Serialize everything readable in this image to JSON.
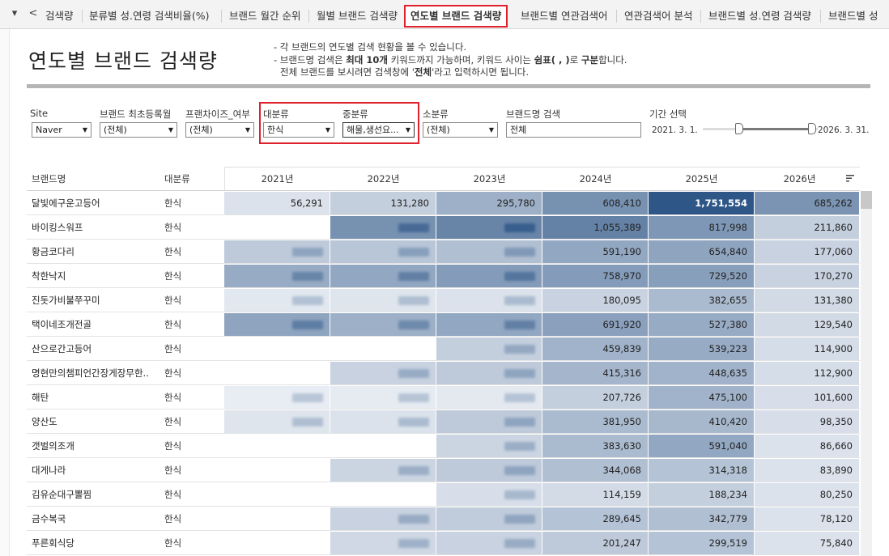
{
  "tabs": [
    {
      "label": "검색량",
      "active": false
    },
    {
      "label": "분류별 성.연령 검색비율(%)",
      "active": false
    },
    {
      "label": "브랜드 월간 순위",
      "active": false
    },
    {
      "label": "월별 브랜드 검색량",
      "active": false
    },
    {
      "label": "연도별 브랜드 검색량",
      "active": true
    },
    {
      "label": "브랜드별 연관검색어",
      "active": false
    },
    {
      "label": "연관검색어 분석",
      "active": false
    },
    {
      "label": "브랜드별 성.연령 검색량",
      "active": false
    },
    {
      "label": "브랜드별 성",
      "active": false
    }
  ],
  "nav": {
    "down": "▾",
    "back": "<"
  },
  "header": {
    "title": "연도별 브랜드 검색량",
    "desc_line1": "- 각 브랜드의 연도별 검색 현황을 볼 수 있습니다.",
    "desc_line2_a": "- 브랜드명 검색은 ",
    "desc_line2_b": "최대 10개",
    "desc_line2_c": " 키워드까지 가능하며, 키워드 사이는 ",
    "desc_line2_d": "쉼표( , )",
    "desc_line2_e": "로 ",
    "desc_line2_f": "구분",
    "desc_line2_g": "합니다.",
    "desc_line3_a": "전체 브랜드를 보시려면 검색창에 '",
    "desc_line3_b": "전체",
    "desc_line3_c": "'라고 입력하시면 됩니다."
  },
  "filters": {
    "site": {
      "label": "Site",
      "value": "Naver"
    },
    "first_reg": {
      "label": "브랜드 최초등록월",
      "value": "(전체)"
    },
    "franchise": {
      "label": "프랜차이즈_여부",
      "value": "(전체)"
    },
    "major": {
      "label": "대분류",
      "value": "한식"
    },
    "middle": {
      "label": "중분류",
      "value": "해물,생선요..."
    },
    "minor": {
      "label": "소분류",
      "value": "(전체)"
    },
    "brand_search": {
      "label": "브랜드명 검색",
      "value": "전체"
    },
    "period": {
      "label": "기간 선택",
      "start": "2021. 3. 1.",
      "end": "2026. 3. 31."
    }
  },
  "table": {
    "col_brand": "브랜드명",
    "col_category": "대분류",
    "years": [
      "2021년",
      "2022년",
      "2023년",
      "2024년",
      "2025년",
      "2026년"
    ],
    "rows": [
      {
        "brand": "달빛에구운고등어",
        "cat": "한식",
        "v": [
          "56,291",
          "131,280",
          "295,780",
          "608,410",
          "1,751,554",
          "685,262"
        ]
      },
      {
        "brand": "바이킹스워프",
        "cat": "한식",
        "v": [
          "",
          "",
          "",
          "1,055,389",
          "817,998",
          "211,860"
        ]
      },
      {
        "brand": "황금코다리",
        "cat": "한식",
        "v": [
          "",
          "",
          "",
          "591,190",
          "654,840",
          "177,060"
        ]
      },
      {
        "brand": "착한낙지",
        "cat": "한식",
        "v": [
          "",
          "",
          "",
          "758,970",
          "729,520",
          "170,270"
        ]
      },
      {
        "brand": "진돗가비불쭈꾸미",
        "cat": "한식",
        "v": [
          "",
          "",
          "",
          "180,095",
          "382,655",
          "131,380"
        ]
      },
      {
        "brand": "택이네조개전골",
        "cat": "한식",
        "v": [
          "",
          "",
          "",
          "691,920",
          "527,380",
          "129,540"
        ]
      },
      {
        "brand": "산으로간고등어",
        "cat": "한식",
        "v": [
          "",
          "",
          "",
          "459,839",
          "539,223",
          "114,900"
        ]
      },
      {
        "brand": "명현만의챔피언간장게장무한..",
        "cat": "한식",
        "v": [
          "",
          "",
          "",
          "415,316",
          "448,635",
          "112,900"
        ]
      },
      {
        "brand": "해탄",
        "cat": "한식",
        "v": [
          "",
          "",
          "",
          "207,726",
          "475,100",
          "101,600"
        ]
      },
      {
        "brand": "양산도",
        "cat": "한식",
        "v": [
          "",
          "",
          "",
          "381,950",
          "410,420",
          "98,350"
        ]
      },
      {
        "brand": "갯벌의조개",
        "cat": "한식",
        "v": [
          "",
          "",
          "",
          "383,630",
          "591,040",
          "86,660"
        ]
      },
      {
        "brand": "대게나라",
        "cat": "한식",
        "v": [
          "",
          "",
          "",
          "344,068",
          "314,318",
          "83,890"
        ]
      },
      {
        "brand": "김유순대구뽈찜",
        "cat": "한식",
        "v": [
          "",
          "",
          "",
          "114,159",
          "188,234",
          "80,250"
        ]
      },
      {
        "brand": "금수복국",
        "cat": "한식",
        "v": [
          "",
          "",
          "",
          "289,645",
          "342,779",
          "78,120"
        ]
      },
      {
        "brand": "푸른회식당",
        "cat": "한식",
        "v": [
          "",
          "",
          "",
          "201,247",
          "299,519",
          "75,840"
        ]
      }
    ]
  },
  "colors": {
    "accent_red": "#e0212d",
    "heat_dark": "#2e5687",
    "heat_light": "#f2f4f7"
  }
}
